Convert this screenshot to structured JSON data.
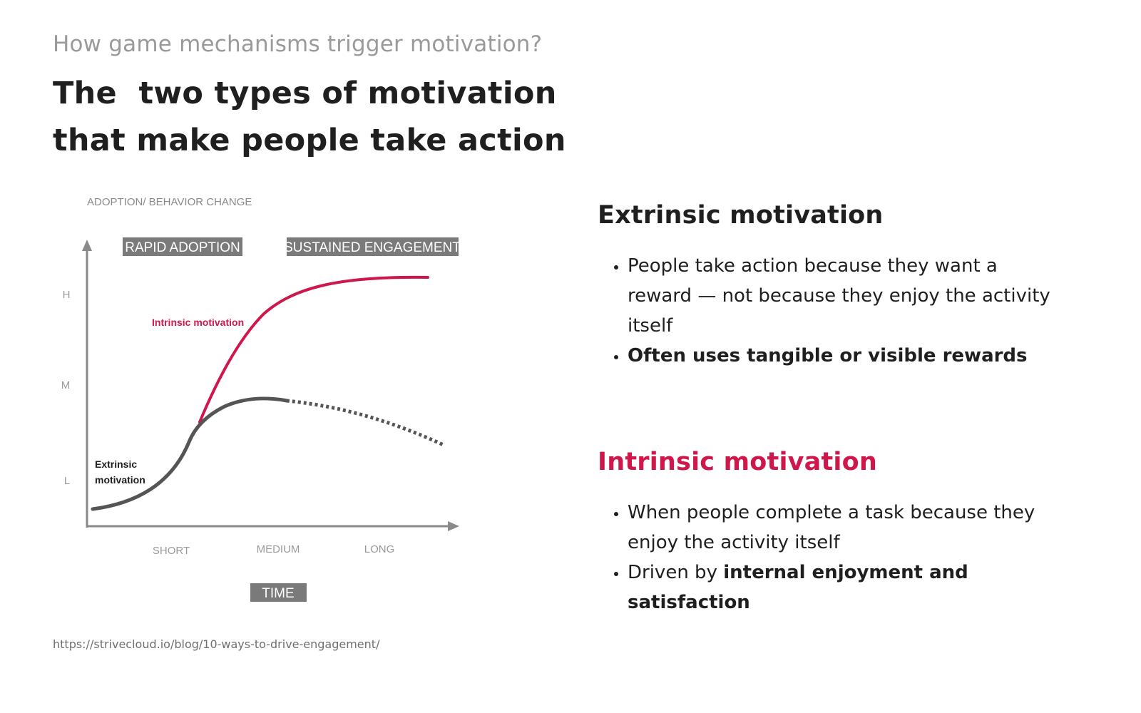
{
  "header": {
    "subtitle": "How game mechanisms trigger motivation?",
    "title_line1": "The  two types of motivation",
    "title_line2": "that make people take action"
  },
  "chart_data": {
    "type": "line",
    "ylabel": "ADOPTION/ BEHAVIOR CHANGE",
    "xlabel": "TIME",
    "y_ticks": [
      "H",
      "M",
      "L"
    ],
    "x_ticks": [
      "SHORT",
      "MEDIUM",
      "LONG"
    ],
    "phases": [
      "RAPID ADOPTION",
      "SUSTAINED ENGAGEMENT"
    ],
    "series": [
      {
        "name": "Intrinsic motivation",
        "color": "#d0174c",
        "style": "solid"
      },
      {
        "name": "Extrinsic\nmotivation",
        "name_line1": "Extrinsic",
        "name_line2": "motivation",
        "color": "#555555",
        "style": "solid-then-dashed"
      }
    ]
  },
  "source": "https://strivecloud.io/blog/10-ways-to-drive-engagement/",
  "extrinsic": {
    "heading": "Extrinsic motivation",
    "bullet1": "People take action because they want a reward — not because they enjoy the activity itself",
    "bullet2": "Often uses tangible or visible rewards"
  },
  "intrinsic": {
    "heading": "Intrinsic motivation",
    "bullet1": "When people complete a task because they enjoy the activity itself",
    "bullet2_prefix": "Driven by ",
    "bullet2_bold": "internal enjoyment and satisfaction"
  },
  "colors": {
    "accent": "#d0174c",
    "dark_curve": "#555555",
    "label_box": "#7a7a7a"
  }
}
